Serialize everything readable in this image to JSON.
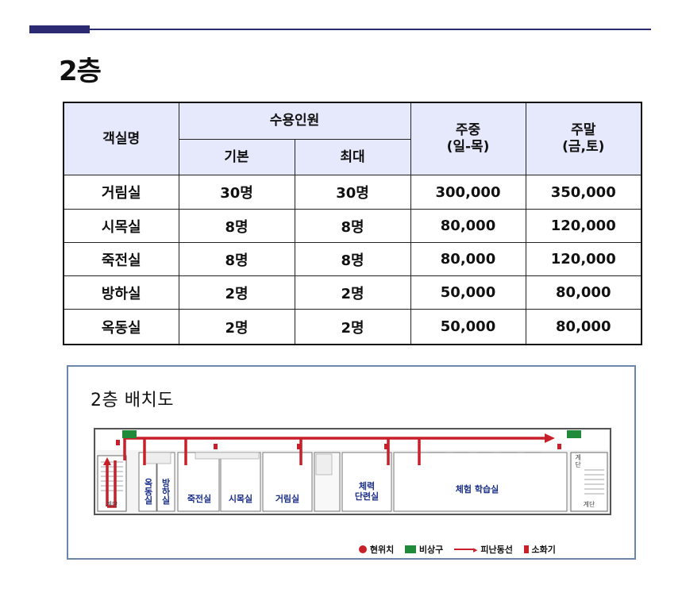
{
  "page_title": "2층",
  "table": {
    "headers": {
      "room_name": "객실명",
      "capacity": "수용인원",
      "basic": "기본",
      "max": "최대",
      "weekday": "주중\n(일-목)",
      "weekend": "주말\n(금,토)"
    },
    "rows": [
      {
        "name": "거림실",
        "basic": "30명",
        "max": "30명",
        "weekday": "300,000",
        "weekend": "350,000"
      },
      {
        "name": "시목실",
        "basic": "8명",
        "max": "8명",
        "weekday": "80,000",
        "weekend": "120,000"
      },
      {
        "name": "죽전실",
        "basic": "8명",
        "max": "8명",
        "weekday": "80,000",
        "weekend": "120,000"
      },
      {
        "name": "방하실",
        "basic": "2명",
        "max": "2명",
        "weekday": "50,000",
        "weekend": "80,000"
      },
      {
        "name": "옥동실",
        "basic": "2명",
        "max": "2명",
        "weekday": "50,000",
        "weekend": "80,000"
      }
    ]
  },
  "floor_plan": {
    "title": "2층 배치도",
    "rooms": {
      "okdong": [
        "옥",
        "동",
        "실"
      ],
      "bangha": [
        "방",
        "하",
        "실"
      ],
      "jukjeon": "죽전실",
      "simok": "시목실",
      "georim": "거림실",
      "fitness": [
        "체력",
        "단련실"
      ],
      "experience": "체험 학습실",
      "stairs_left": "계단",
      "stairs_right": "계단",
      "stairs_right_top": [
        "계",
        "단"
      ]
    },
    "legend": {
      "current": "현위치",
      "exit": "비상구",
      "route": "피난동선",
      "extinguisher": "소화기"
    },
    "colors": {
      "route": "#c8202a",
      "exit_sign": "#1f8a3a",
      "room_text": "#1a2f8a",
      "header_accent": "#2c2a73"
    }
  }
}
